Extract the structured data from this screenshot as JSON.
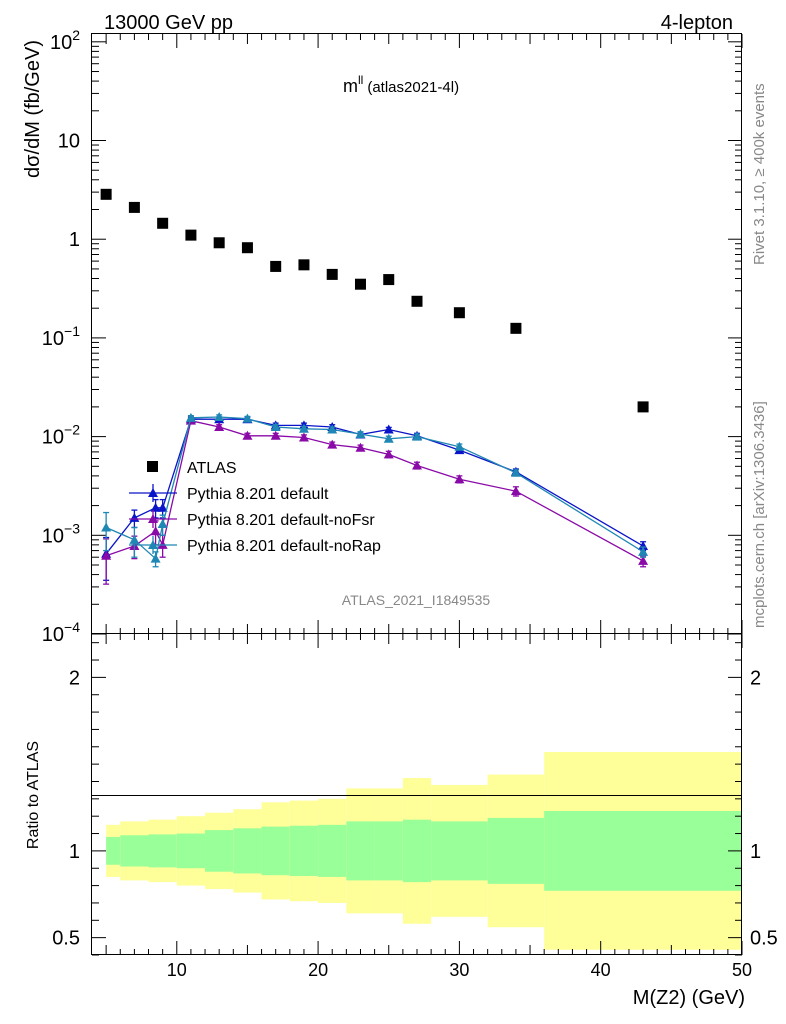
{
  "header": {
    "left": "13000 GeV pp",
    "right": "4-lepton"
  },
  "plot_title": {
    "main": "m",
    "sup": "ll",
    "sub": "(atlas2021-4l)"
  },
  "side_labels": {
    "rivet": "Rivet 3.1.10, ≥ 400k events",
    "mcplots": "mcplots.cern.ch [arXiv:1306.3436]"
  },
  "watermark": "ATLAS_2021_I1849535",
  "colors": {
    "data": "#000000",
    "default": "#0a14c8",
    "noFsr": "#8a0aa8",
    "noRap": "#1e87b4",
    "band_inner": "#99ff99",
    "band_outer": "#ffff99"
  },
  "chart_data": [
    {
      "type": "scatter",
      "yscale": "log",
      "ylabel": "dσ/dM (fb/GeV)",
      "xlim": [
        4,
        50
      ],
      "ylim": [
        0.0001,
        120
      ],
      "ytick_labels": [
        {
          "value": 100,
          "base": "10",
          "exp": "2"
        },
        {
          "value": 10,
          "base": "10",
          "exp": ""
        },
        {
          "value": 1,
          "base": "1",
          "exp": ""
        },
        {
          "value": 0.1,
          "base": "10",
          "exp": "−1"
        },
        {
          "value": 0.01,
          "base": "10",
          "exp": "−2"
        },
        {
          "value": 0.001,
          "base": "10",
          "exp": "−3"
        },
        {
          "value": 0.0001,
          "base": "10",
          "exp": "−4"
        }
      ],
      "legend_position": "lower-left",
      "series": [
        {
          "name": "ATLAS",
          "key": "data",
          "marker": "square",
          "x": [
            5,
            7,
            9,
            11,
            13,
            15,
            17,
            19,
            21,
            23,
            25,
            27,
            30,
            34,
            43
          ],
          "y": [
            2.85,
            2.1,
            1.45,
            1.1,
            0.92,
            0.82,
            0.53,
            0.55,
            0.44,
            0.35,
            0.39,
            0.235,
            0.18,
            0.125,
            0.02
          ]
        },
        {
          "name": "Pythia 8.201 default",
          "key": "default",
          "marker": "triangle-up",
          "x": [
            5,
            7,
            8.5,
            9,
            11,
            13,
            15,
            17,
            19,
            21,
            23,
            25,
            27,
            30,
            34,
            43
          ],
          "y": [
            0.00065,
            0.0015,
            0.0019,
            0.0019,
            0.015,
            0.015,
            0.015,
            0.013,
            0.013,
            0.0125,
            0.0105,
            0.0118,
            0.0102,
            0.0073,
            0.0044,
            0.00078
          ],
          "yerr": [
            0.0003,
            0.0003,
            0.0004,
            0.0004,
            0.0008,
            0.0008,
            0.0008,
            0.0007,
            0.0007,
            0.0007,
            0.0006,
            0.0006,
            0.0006,
            0.0004,
            0.0003,
            8e-05
          ]
        },
        {
          "name": "Pythia 8.201 default-noFsr",
          "key": "noFsr",
          "marker": "triangle-up",
          "x": [
            5,
            7,
            8.5,
            9,
            11,
            13,
            15,
            17,
            19,
            21,
            23,
            25,
            27,
            30,
            34,
            43
          ],
          "y": [
            0.00062,
            0.00078,
            0.0011,
            0.0008,
            0.0145,
            0.0125,
            0.0102,
            0.0102,
            0.0098,
            0.0083,
            0.0077,
            0.0066,
            0.0051,
            0.0037,
            0.0028,
            0.00055
          ],
          "yerr": [
            0.0003,
            0.0002,
            0.0003,
            0.0002,
            0.0008,
            0.0007,
            0.0006,
            0.0006,
            0.0006,
            0.0005,
            0.0005,
            0.0005,
            0.0004,
            0.0003,
            0.0003,
            7e-05
          ]
        },
        {
          "name": "Pythia 8.201 default-noRap",
          "key": "noRap",
          "marker": "triangle-up",
          "x": [
            5,
            7,
            8.5,
            9,
            11,
            13,
            15,
            17,
            19,
            21,
            23,
            25,
            27,
            30,
            34,
            43
          ],
          "y": [
            0.0012,
            0.0009,
            0.00058,
            0.0013,
            0.0155,
            0.0158,
            0.0152,
            0.0125,
            0.012,
            0.0118,
            0.0106,
            0.0095,
            0.01,
            0.0079,
            0.0043,
            0.00068
          ],
          "yerr": [
            0.0005,
            0.0003,
            0.0001,
            0.0003,
            0.0008,
            0.0008,
            0.0008,
            0.0007,
            0.0007,
            0.0007,
            0.0006,
            0.0006,
            0.0006,
            0.0005,
            0.0003,
            8e-05
          ]
        }
      ]
    },
    {
      "type": "area",
      "yscale": "linear",
      "xlabel": "M(Z2) (GeV)",
      "ylabel": "Ratio to ATLAS",
      "xlim": [
        4,
        50
      ],
      "ylim": [
        0.4,
        2.25
      ],
      "xticks": [
        10,
        20,
        30,
        40,
        50
      ],
      "yticks": [
        0.5,
        1,
        2
      ],
      "ytick_labels": [
        "0.5",
        "1",
        "2"
      ],
      "reference_line": 1,
      "bins": [
        {
          "lo": 5,
          "hi": 6,
          "inner": [
            0.92,
            1.08
          ],
          "outer": [
            0.85,
            1.15
          ]
        },
        {
          "lo": 6,
          "hi": 8,
          "inner": [
            0.91,
            1.09
          ],
          "outer": [
            0.83,
            1.17
          ]
        },
        {
          "lo": 8,
          "hi": 10,
          "inner": [
            0.905,
            1.095
          ],
          "outer": [
            0.82,
            1.18
          ]
        },
        {
          "lo": 10,
          "hi": 12,
          "inner": [
            0.9,
            1.1
          ],
          "outer": [
            0.8,
            1.2
          ]
        },
        {
          "lo": 12,
          "hi": 14,
          "inner": [
            0.88,
            1.12
          ],
          "outer": [
            0.78,
            1.22
          ]
        },
        {
          "lo": 14,
          "hi": 16,
          "inner": [
            0.87,
            1.13
          ],
          "outer": [
            0.76,
            1.24
          ]
        },
        {
          "lo": 16,
          "hi": 18,
          "inner": [
            0.86,
            1.14
          ],
          "outer": [
            0.72,
            1.28
          ]
        },
        {
          "lo": 18,
          "hi": 20,
          "inner": [
            0.855,
            1.145
          ],
          "outer": [
            0.71,
            1.29
          ]
        },
        {
          "lo": 20,
          "hi": 22,
          "inner": [
            0.85,
            1.15
          ],
          "outer": [
            0.7,
            1.3
          ]
        },
        {
          "lo": 22,
          "hi": 24,
          "inner": [
            0.83,
            1.17
          ],
          "outer": [
            0.64,
            1.36
          ]
        },
        {
          "lo": 24,
          "hi": 26,
          "inner": [
            0.83,
            1.17
          ],
          "outer": [
            0.64,
            1.36
          ]
        },
        {
          "lo": 26,
          "hi": 28,
          "inner": [
            0.82,
            1.18
          ],
          "outer": [
            0.58,
            1.42
          ]
        },
        {
          "lo": 28,
          "hi": 32,
          "inner": [
            0.83,
            1.17
          ],
          "outer": [
            0.62,
            1.38
          ]
        },
        {
          "lo": 32,
          "hi": 36,
          "inner": [
            0.81,
            1.19
          ],
          "outer": [
            0.56,
            1.44
          ]
        },
        {
          "lo": 36,
          "hi": 50,
          "inner": [
            0.77,
            1.23
          ],
          "outer": [
            0.43,
            1.57
          ]
        }
      ]
    }
  ]
}
